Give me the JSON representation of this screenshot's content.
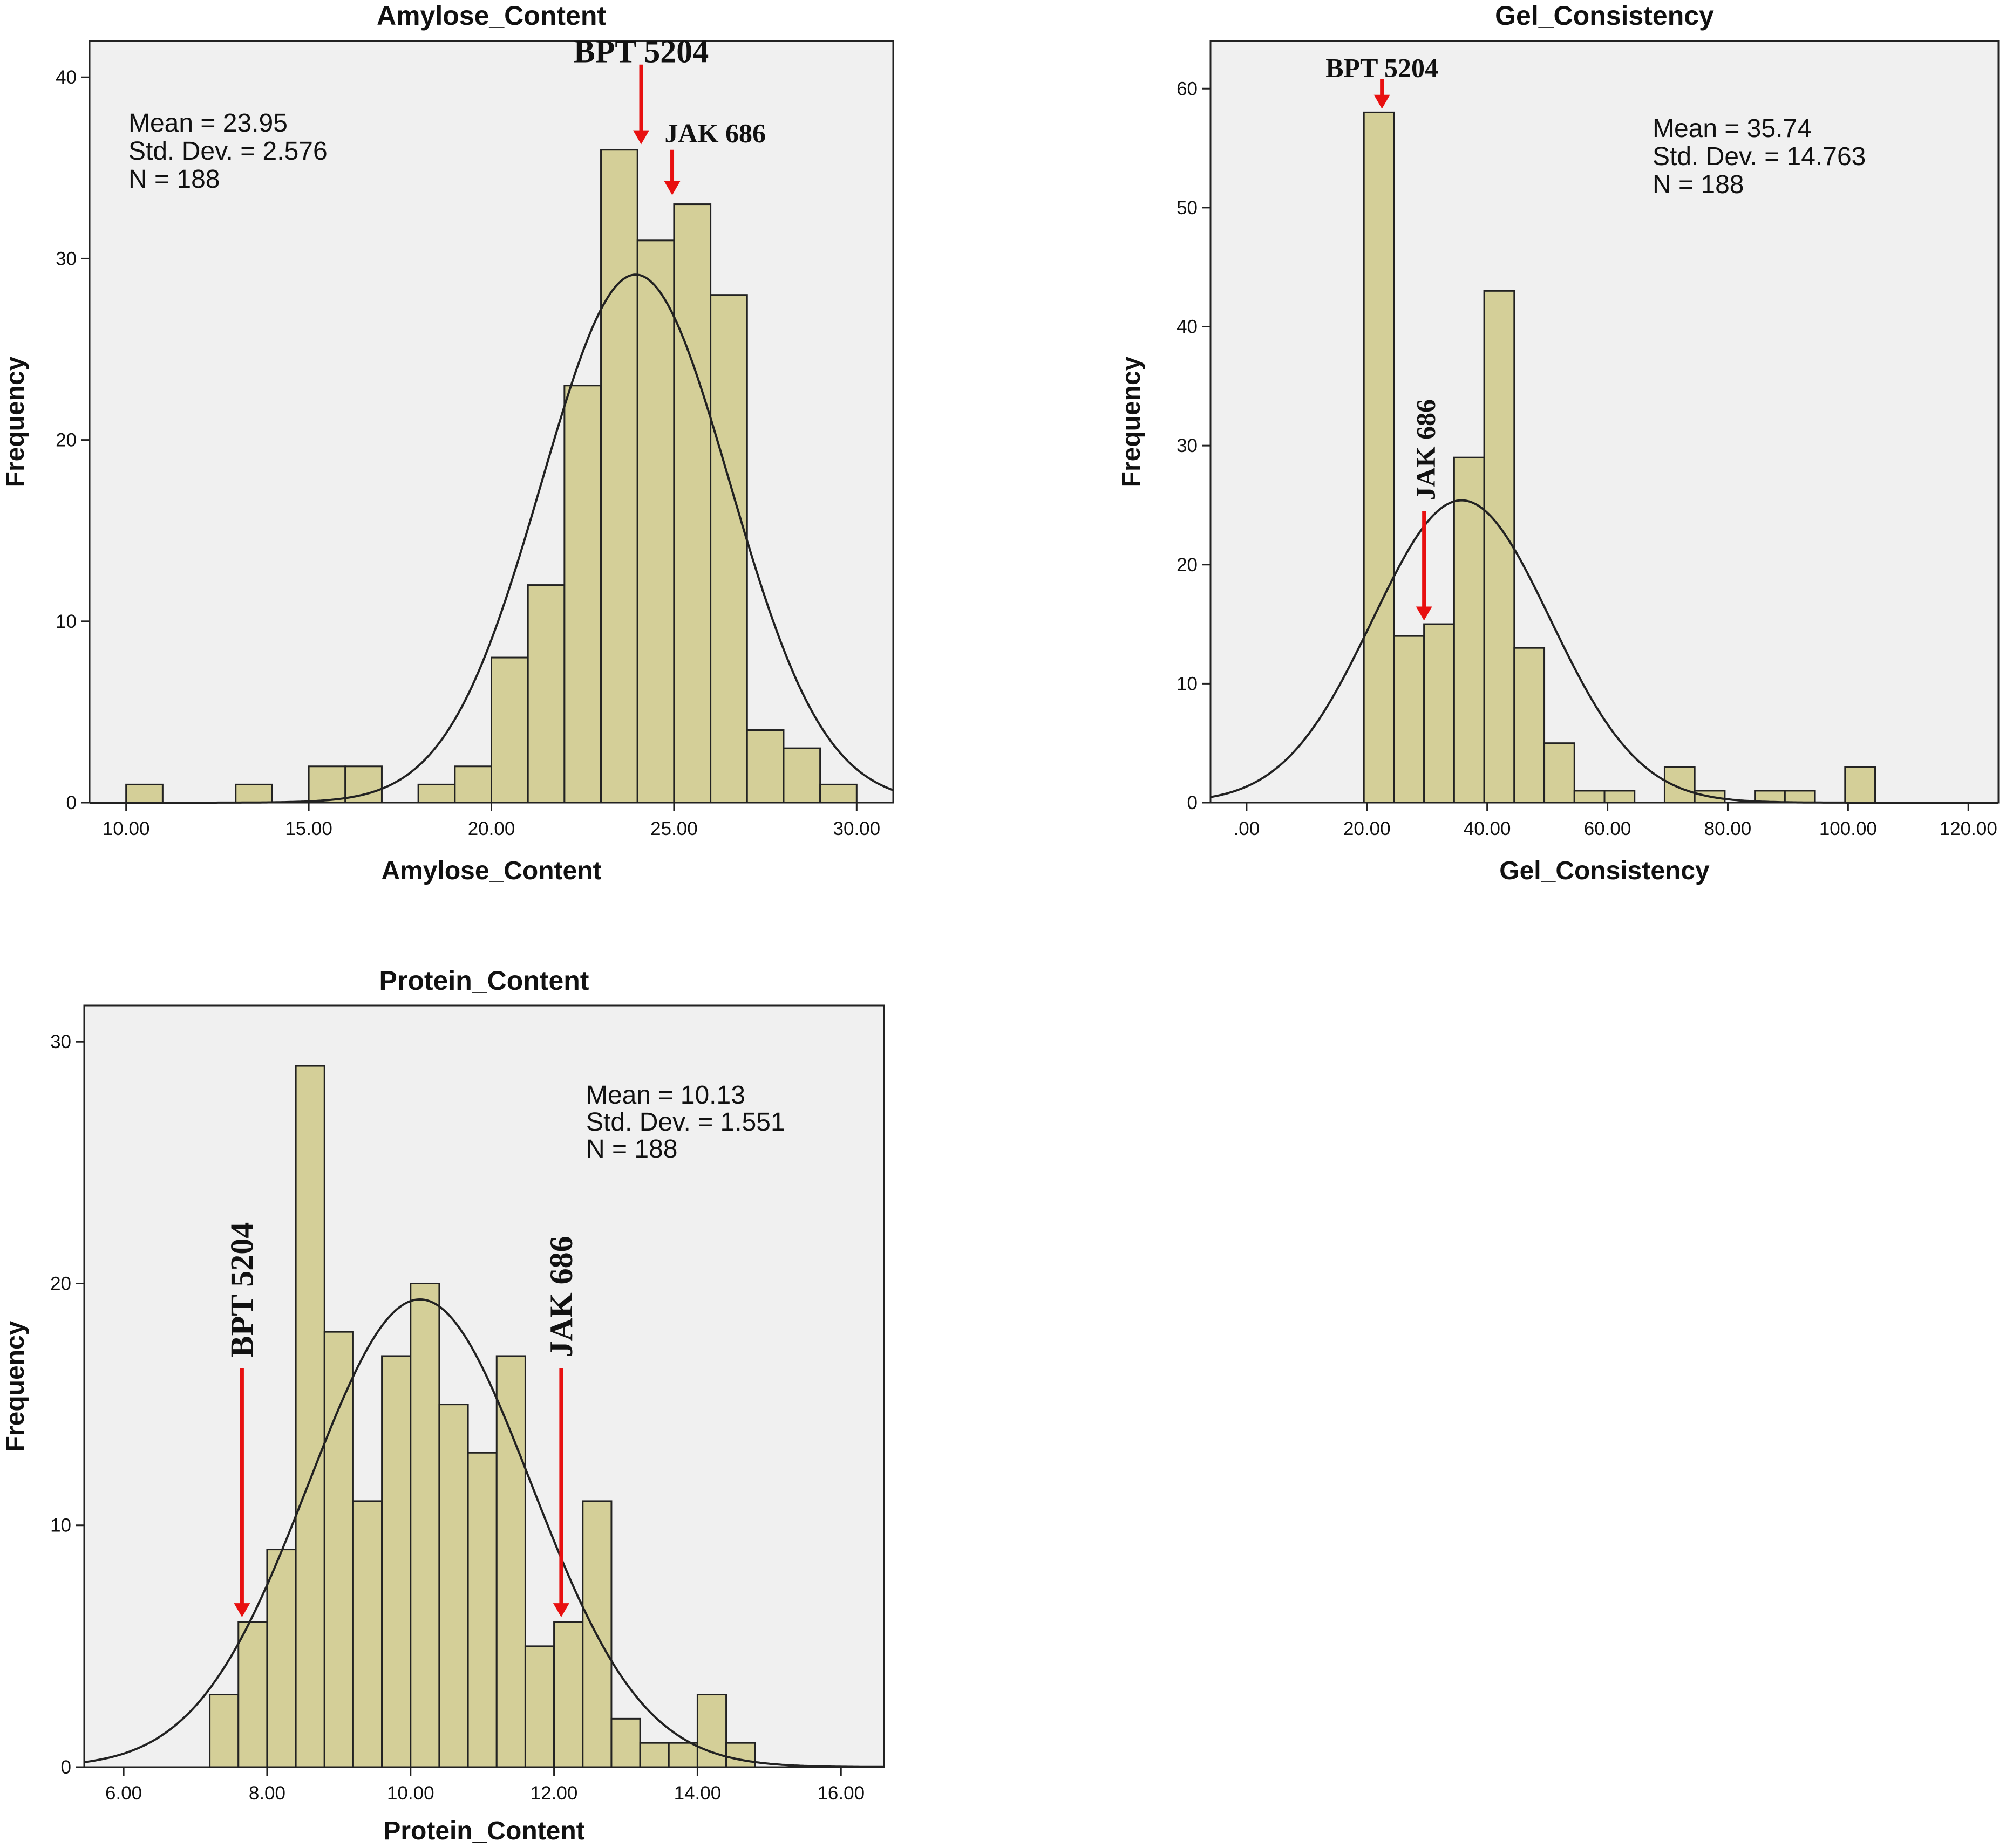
{
  "colors": {
    "bar_fill": "#d4cf98",
    "plot_background": "#f0f0f0",
    "axis": "#222222",
    "marker_arrow": "#e81010"
  },
  "chart_data": [
    {
      "id": "amylose",
      "type": "bar",
      "title": "Amylose_Content",
      "xlabel": "Amylose_Content",
      "ylabel": "Frequency",
      "xlim": [
        9.0,
        31.0
      ],
      "ylim": [
        0,
        42
      ],
      "xticks": [
        10,
        15,
        20,
        25,
        30
      ],
      "xtick_labels": [
        "10.00",
        "15.00",
        "20.00",
        "25.00",
        "30.00"
      ],
      "yticks": [
        0,
        10,
        20,
        30,
        40
      ],
      "ytick_labels": [
        "0",
        "10",
        "20",
        "30",
        "40"
      ],
      "stats_lines": [
        "Mean = 23.95",
        "Std. Dev. = 2.576",
        "N = 188"
      ],
      "stats_anchor": "top-left",
      "normal_curve": {
        "mean": 23.95,
        "sd": 2.576,
        "n": 188,
        "bin_width": 1.0
      },
      "bins": [
        {
          "start": 10,
          "end": 11,
          "count": 1
        },
        {
          "start": 13,
          "end": 14,
          "count": 1
        },
        {
          "start": 15,
          "end": 16,
          "count": 2
        },
        {
          "start": 16,
          "end": 17,
          "count": 2
        },
        {
          "start": 18,
          "end": 19,
          "count": 1
        },
        {
          "start": 19,
          "end": 20,
          "count": 2
        },
        {
          "start": 20,
          "end": 21,
          "count": 8
        },
        {
          "start": 21,
          "end": 22,
          "count": 12
        },
        {
          "start": 22,
          "end": 23,
          "count": 23
        },
        {
          "start": 23,
          "end": 24,
          "count": 36
        },
        {
          "start": 24,
          "end": 25,
          "count": 31
        },
        {
          "start": 25,
          "end": 26,
          "count": 33
        },
        {
          "start": 26,
          "end": 27,
          "count": 28
        },
        {
          "start": 27,
          "end": 28,
          "count": 4
        },
        {
          "start": 28,
          "end": 29,
          "count": 3
        },
        {
          "start": 29,
          "end": 30,
          "count": 1
        }
      ],
      "annotations": [
        {
          "label": "BPT 5204",
          "x": 24.1,
          "y_top": 40.7,
          "y_tip": 36.3,
          "orientation": "horizontal",
          "label_pos": "above"
        },
        {
          "label": "JAK 686",
          "x": 24.95,
          "y_top": 36.0,
          "y_tip": 33.5,
          "orientation": "horizontal",
          "label_pos": "above-right"
        }
      ]
    },
    {
      "id": "gel",
      "type": "bar",
      "title": "Gel_Consistency",
      "xlabel": "Gel_Consistency",
      "ylabel": "Frequency",
      "xlim": [
        -6.0,
        125.0
      ],
      "ylim": [
        0,
        64
      ],
      "xticks": [
        0,
        20,
        40,
        60,
        80,
        100,
        120
      ],
      "xtick_labels": [
        ".00",
        "20.00",
        "40.00",
        "60.00",
        "80.00",
        "100.00",
        "120.00"
      ],
      "yticks": [
        0,
        10,
        20,
        30,
        40,
        50,
        60
      ],
      "ytick_labels": [
        "0",
        "10",
        "20",
        "30",
        "40",
        "50",
        "60"
      ],
      "stats_lines": [
        "Mean = 35.74",
        "Std. Dev. = 14.763",
        "N = 188"
      ],
      "stats_anchor": "top-right",
      "normal_curve": {
        "mean": 35.74,
        "sd": 14.763,
        "n": 188,
        "bin_width": 5.0
      },
      "bins": [
        {
          "start": 19.5,
          "end": 24.5,
          "count": 58
        },
        {
          "start": 24.5,
          "end": 29.5,
          "count": 14
        },
        {
          "start": 29.5,
          "end": 34.5,
          "count": 15
        },
        {
          "start": 34.5,
          "end": 39.5,
          "count": 29
        },
        {
          "start": 39.5,
          "end": 44.5,
          "count": 43
        },
        {
          "start": 44.5,
          "end": 49.5,
          "count": 13
        },
        {
          "start": 49.5,
          "end": 54.5,
          "count": 5
        },
        {
          "start": 54.5,
          "end": 59.5,
          "count": 1
        },
        {
          "start": 59.5,
          "end": 64.5,
          "count": 1
        },
        {
          "start": 69.5,
          "end": 74.5,
          "count": 3
        },
        {
          "start": 74.5,
          "end": 79.5,
          "count": 1
        },
        {
          "start": 84.5,
          "end": 89.5,
          "count": 1
        },
        {
          "start": 89.5,
          "end": 94.5,
          "count": 1
        },
        {
          "start": 99.5,
          "end": 104.5,
          "count": 3
        }
      ],
      "annotations": [
        {
          "label": "BPT 5204",
          "x": 22.5,
          "y_top": 60.8,
          "y_tip": 58.3,
          "orientation": "horizontal",
          "label_pos": "above"
        },
        {
          "label": "JAK 686",
          "x": 29.5,
          "y_top": 24.5,
          "y_tip": 15.3,
          "orientation": "vertical",
          "label_pos": "above"
        }
      ]
    },
    {
      "id": "protein",
      "type": "bar",
      "title": "Protein_Content",
      "xlabel": "Protein_Content",
      "ylabel": "Frequency",
      "xlim": [
        5.45,
        16.6
      ],
      "ylim": [
        0,
        31.5
      ],
      "xticks": [
        6,
        8,
        10,
        12,
        14,
        16
      ],
      "xtick_labels": [
        "6.00",
        "8.00",
        "10.00",
        "12.00",
        "14.00",
        "16.00"
      ],
      "yticks": [
        0,
        10,
        20,
        30
      ],
      "ytick_labels": [
        "0",
        "10",
        "20",
        "30"
      ],
      "stats_lines": [
        "Mean = 10.13",
        "Std. Dev. = 1.551",
        "N = 188"
      ],
      "stats_anchor": "top-right",
      "normal_curve": {
        "mean": 10.13,
        "sd": 1.551,
        "n": 188,
        "bin_width": 0.4
      },
      "bins": [
        {
          "start": 7.2,
          "end": 7.6,
          "count": 3
        },
        {
          "start": 7.6,
          "end": 8.0,
          "count": 6
        },
        {
          "start": 8.0,
          "end": 8.4,
          "count": 9
        },
        {
          "start": 8.4,
          "end": 8.8,
          "count": 29
        },
        {
          "start": 8.8,
          "end": 9.2,
          "count": 18
        },
        {
          "start": 9.2,
          "end": 9.6,
          "count": 11
        },
        {
          "start": 9.6,
          "end": 10.0,
          "count": 17
        },
        {
          "start": 10.0,
          "end": 10.4,
          "count": 20
        },
        {
          "start": 10.4,
          "end": 10.8,
          "count": 15
        },
        {
          "start": 10.8,
          "end": 11.2,
          "count": 13
        },
        {
          "start": 11.2,
          "end": 11.6,
          "count": 17
        },
        {
          "start": 11.6,
          "end": 12.0,
          "count": 5
        },
        {
          "start": 12.0,
          "end": 12.4,
          "count": 6
        },
        {
          "start": 12.4,
          "end": 12.8,
          "count": 11
        },
        {
          "start": 12.8,
          "end": 13.2,
          "count": 2
        },
        {
          "start": 13.2,
          "end": 13.6,
          "count": 1
        },
        {
          "start": 13.6,
          "end": 14.0,
          "count": 1
        },
        {
          "start": 14.0,
          "end": 14.4,
          "count": 3
        },
        {
          "start": 14.4,
          "end": 14.8,
          "count": 1
        }
      ],
      "annotations": [
        {
          "label": "BPT 5204",
          "x": 7.65,
          "y_top": 16.5,
          "y_tip": 6.2,
          "orientation": "vertical",
          "label_pos": "above"
        },
        {
          "label": "JAK 686",
          "x": 12.1,
          "y_top": 16.5,
          "y_tip": 6.2,
          "orientation": "vertical",
          "label_pos": "above"
        }
      ]
    }
  ]
}
